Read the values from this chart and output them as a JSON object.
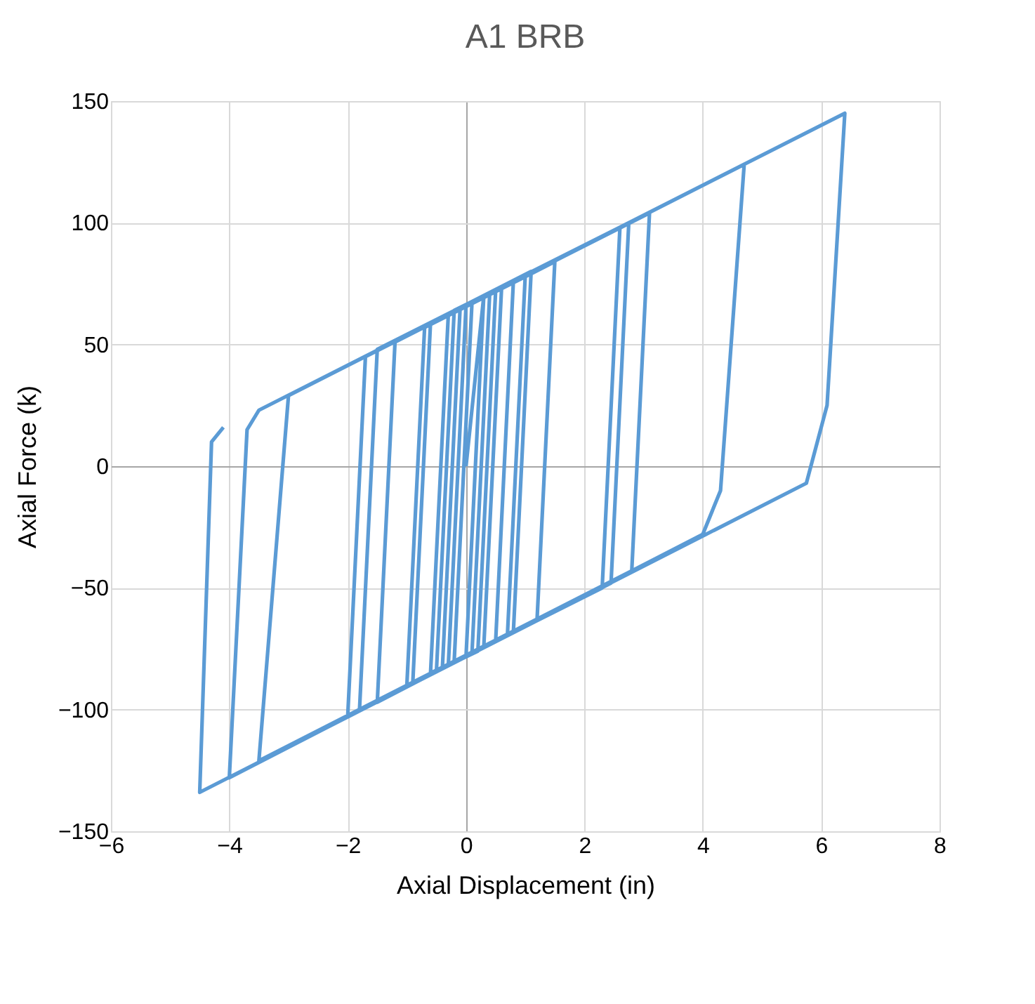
{
  "chart_data": {
    "type": "line",
    "title": "A1 BRB",
    "xlabel": "Axial Displacement (in)",
    "ylabel": "Axial Force (k)",
    "xlim": [
      -6,
      8
    ],
    "xticks": [
      -6,
      -4,
      -2,
      0,
      2,
      4,
      6,
      8
    ],
    "ylim": [
      -150,
      150
    ],
    "yticks": [
      -150,
      -100,
      -50,
      0,
      50,
      100,
      150
    ],
    "grid": true,
    "series": [
      {
        "color": "#5b9bd5",
        "x": [
          0,
          0.3,
          0,
          -0.2,
          0.1,
          0.4,
          0.1,
          -0.3,
          0,
          0.5,
          0.2,
          -0.4,
          -0.1,
          0.6,
          0.3,
          -0.5,
          -0.2,
          0.8,
          0.5,
          -0.6,
          -0.3,
          1.0,
          0.7,
          -0.9,
          -0.6,
          1.1,
          0.8,
          -1.0,
          -0.7,
          1.5,
          1.2,
          -1.5,
          -1.2,
          2.6,
          2.3,
          -1.8,
          -1.5,
          2.75,
          2.45,
          -2.0,
          -1.7,
          3.1,
          2.8,
          -3.5,
          -3.0,
          4.7,
          4.3,
          4.0,
          -4.0,
          -3.7,
          -3.5,
          6.4,
          6.1,
          5.75,
          -4.5,
          -4.3,
          -4.1
        ],
        "values": [
          0,
          70,
          -78,
          -80,
          67,
          71,
          -77,
          -82,
          66,
          72,
          -76,
          -83,
          65,
          73,
          -74,
          -84,
          64,
          76,
          -72,
          -85,
          62,
          78,
          -69,
          -89,
          59,
          80,
          -68,
          -90,
          57,
          84,
          -63,
          -97,
          51,
          98,
          -50,
          -100,
          48,
          100,
          -48,
          -103,
          45,
          104,
          -43,
          -121,
          29,
          124,
          -10,
          -28,
          -128,
          15,
          23,
          145,
          25,
          -7,
          -134,
          10,
          16
        ]
      }
    ]
  }
}
